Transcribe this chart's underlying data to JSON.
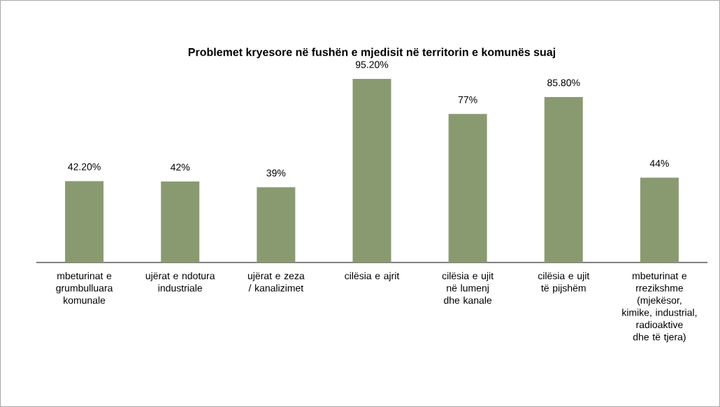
{
  "chart_data": {
    "type": "bar",
    "title": "Problemet kryesore në fushën e mjedisit në territorin e komunës suaj",
    "categories": [
      "mbeturinat e grumbulluara komunale",
      "ujërat e ndotura industriale",
      "ujërat e zeza / kanalizimet",
      "cilësia e ajrit",
      "cilësia e ujit në lumenj dhe kanale",
      "cilësia e ujit të pijshëm",
      "mbeturinat e rrezikshme (mjekësor, kimike, industrial, radioaktive dhe të tjera)"
    ],
    "values": [
      42.2,
      42,
      39,
      95.2,
      77,
      85.8,
      44
    ],
    "value_labels": [
      "42.20%",
      "42%",
      "39%",
      "95.20%",
      "77%",
      "85.80%",
      "44%"
    ],
    "color": "#8a9a70"
  }
}
